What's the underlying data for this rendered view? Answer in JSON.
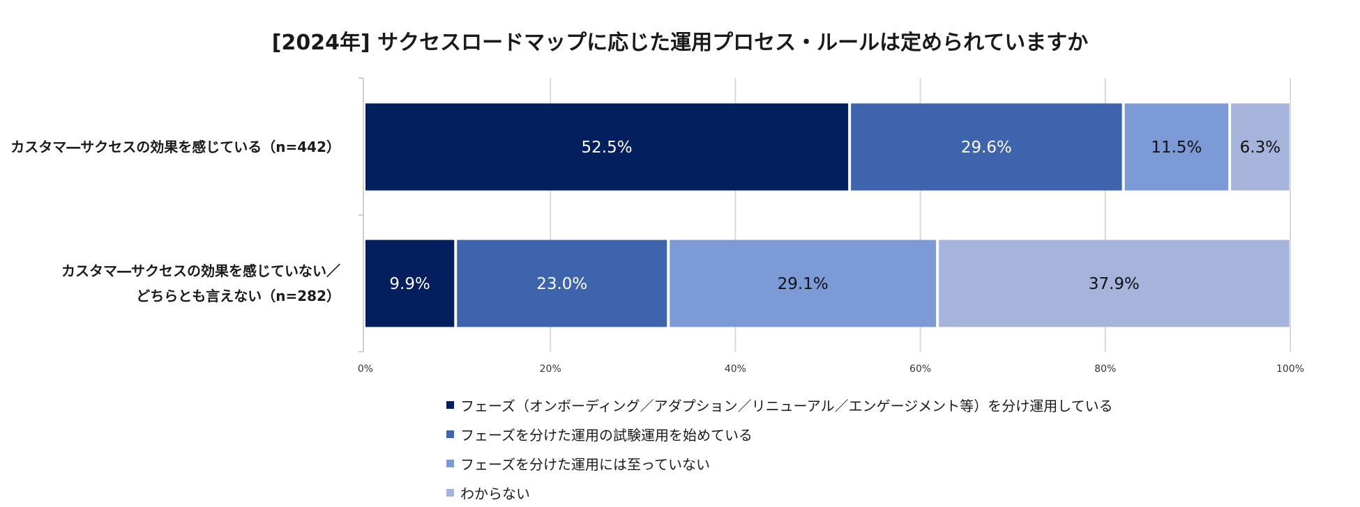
{
  "chart_data": {
    "type": "bar",
    "orientation": "horizontal",
    "stacked": true,
    "title": "[2024年] サクセスロードマップに応じた運用プロセス・ルールは定められていますか",
    "categories": [
      [
        "カスタマ―サクセスの効果を感じている（n=442）"
      ],
      [
        "カスタマ―サクセスの効果を感じていない／",
        "どちらとも言えない（n=282）"
      ]
    ],
    "series": [
      {
        "name": "フェーズ（オンボーディング／アダプション／リニューアル／エンゲージメント等）を分け運用している",
        "values": [
          52.5,
          9.9
        ],
        "labels": [
          "52.5%",
          "9.9%"
        ],
        "color": "#031f5e",
        "label_color": "#ffffff"
      },
      {
        "name": "フェーズを分けた運用の試験運用を始めている",
        "values": [
          29.6,
          23.0
        ],
        "labels": [
          "29.6%",
          "23.0%"
        ],
        "color": "#3d64ad",
        "label_color": "#ffffff"
      },
      {
        "name": "フェーズを分けた運用には至っていない",
        "values": [
          11.5,
          29.1
        ],
        "labels": [
          "11.5%",
          "29.1%"
        ],
        "color": "#7b9ad6",
        "label_color": "#111111"
      },
      {
        "name": "わからない",
        "values": [
          6.3,
          37.9
        ],
        "labels": [
          "6.3%",
          "37.9%"
        ],
        "color": "#a6b4dc",
        "label_color": "#111111"
      }
    ],
    "x_ticks": [
      "0%",
      "20%",
      "40%",
      "60%",
      "80%",
      "100%"
    ],
    "xlim": [
      0,
      100
    ],
    "grid": true,
    "legend_position": "bottom"
  }
}
